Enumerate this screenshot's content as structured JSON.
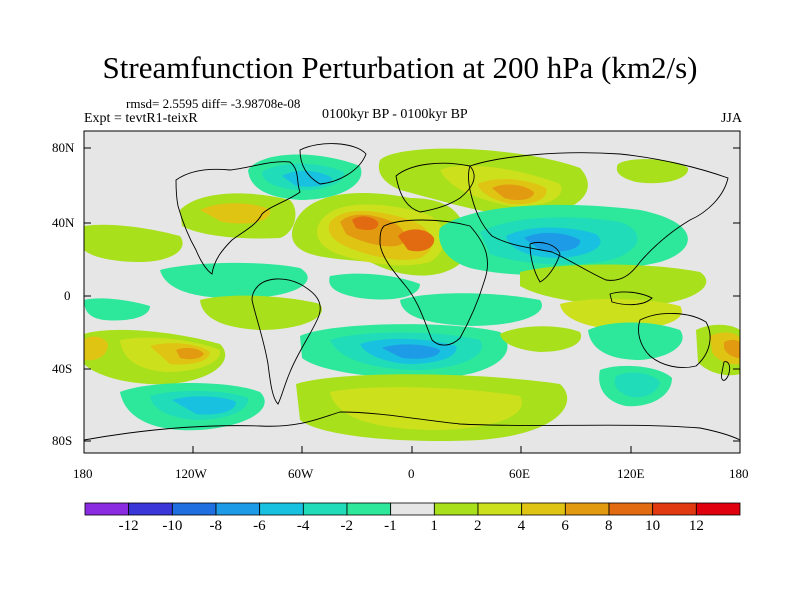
{
  "title": "Streamfunction Perturbation at 200 hPa (km2/s)",
  "stats": "rmsd= 2.5595 diff= -3.98708e-08",
  "experiment": "Expt = tevtR1-teixR",
  "period": "0100kyr BP - 0100kyr BP",
  "season": "JJA",
  "lat_labels": [
    "80N",
    "40N",
    "0",
    "40S",
    "80S"
  ],
  "lon_labels": [
    "180",
    "120W",
    "60W",
    "0",
    "60E",
    "120E",
    "180"
  ],
  "colorbar": {
    "labels": [
      "-12",
      "-10",
      "-8",
      "-6",
      "-4",
      "-2",
      "-1",
      "1",
      "2",
      "4",
      "6",
      "8",
      "10",
      "12"
    ],
    "colors": [
      "#8a2be2",
      "#3a36d8",
      "#1f6fe0",
      "#1e9be6",
      "#19c1e0",
      "#20dcb8",
      "#2de89a",
      "#e6e6e6",
      "#a8e01c",
      "#cde01c",
      "#e0c414",
      "#e29a10",
      "#e26a10",
      "#e23a10",
      "#e0000d"
    ]
  },
  "field_colors": {
    "land": "#ffffff",
    "neutral": "#e6e6e6",
    "coast": "#000000"
  }
}
